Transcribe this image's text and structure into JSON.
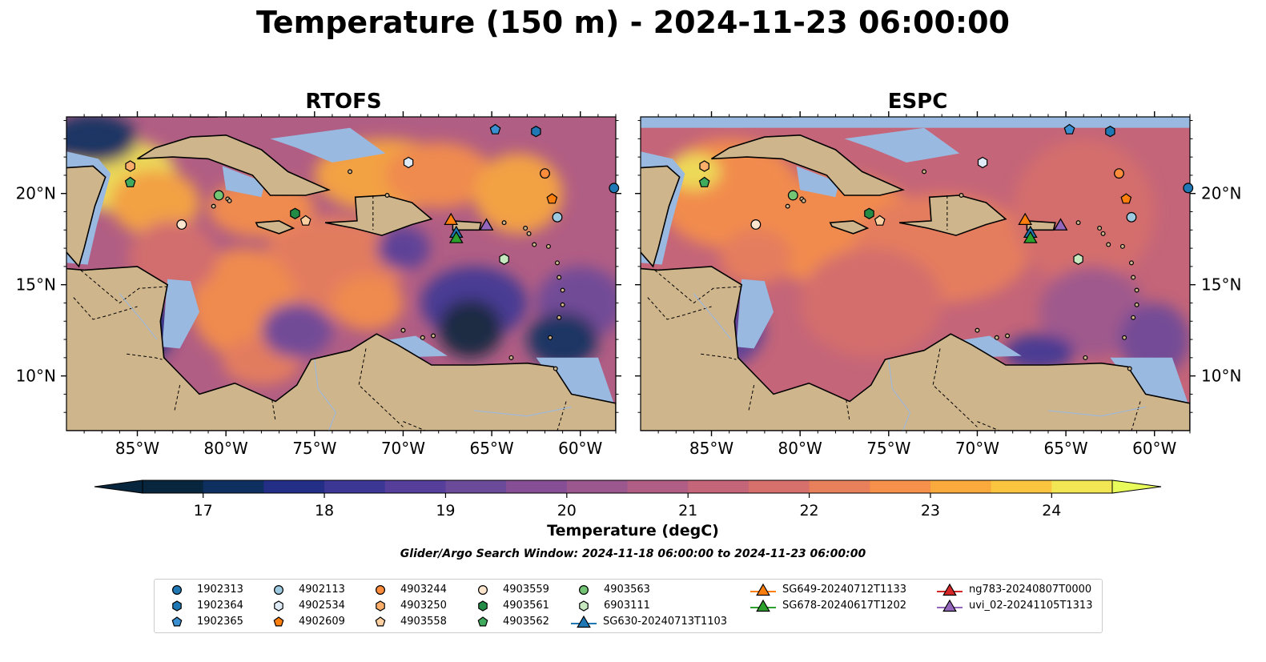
{
  "figure": {
    "title": "Temperature (150 m) - 2024-11-23 06:00:00",
    "panels": [
      {
        "title": "RTOFS"
      },
      {
        "title": "ESPC"
      }
    ],
    "lon_ticks": [
      "85°W",
      "80°W",
      "75°W",
      "70°W",
      "65°W",
      "60°W"
    ],
    "lon_values": [
      -85,
      -80,
      -75,
      -70,
      -65,
      -60
    ],
    "lat_ticks": [
      "10°N",
      "15°N",
      "20°N"
    ],
    "lat_values": [
      10,
      15,
      20
    ],
    "extent": {
      "lon_min": -89,
      "lon_max": -58,
      "lat_min": 7,
      "lat_max": 24.2
    },
    "colors": {
      "land": "#cfb58b",
      "shelf": "#99b9e0",
      "ocean_deep": "#06233a"
    },
    "colorbar": {
      "label": "Temperature (degC)",
      "min": 16.5,
      "max": 24.5,
      "step": 0.5,
      "ticks": [
        17,
        18,
        19,
        20,
        21,
        22,
        23,
        24
      ],
      "tick_labels": [
        "17",
        "18",
        "19",
        "20",
        "21",
        "22",
        "23",
        "24"
      ],
      "colors": [
        "#07253c",
        "#0e3060",
        "#232f86",
        "#3c3795",
        "#563f9a",
        "#6c4a9a",
        "#864f95",
        "#9b588f",
        "#b15e84",
        "#c46579",
        "#d6706c",
        "#e8805b",
        "#f6904a",
        "#faa93c",
        "#fbc540",
        "#f2e654"
      ]
    },
    "search_window": "Glider/Argo Search Window: 2024-11-18 06:00:00 to 2024-11-23 06:00:00",
    "legend": [
      {
        "label": "1902313",
        "marker": "circle",
        "color": "#1f77b4"
      },
      {
        "label": "1902364",
        "marker": "hexagon",
        "color": "#1f77b4"
      },
      {
        "label": "1902365",
        "marker": "pentagon",
        "color": "#3a8fd0"
      },
      {
        "label": "4902113",
        "marker": "circle",
        "color": "#9ecae1"
      },
      {
        "label": "4902534",
        "marker": "hexagon",
        "color": "#deebf7"
      },
      {
        "label": "4902609",
        "marker": "pentagon",
        "color": "#ff7f0e"
      },
      {
        "label": "4903244",
        "marker": "circle",
        "color": "#fd8d3c"
      },
      {
        "label": "4903250",
        "marker": "hexagon",
        "color": "#fdae6b"
      },
      {
        "label": "4903558",
        "marker": "pentagon",
        "color": "#fdd0a2"
      },
      {
        "label": "4903559",
        "marker": "circle",
        "color": "#fee6ce"
      },
      {
        "label": "4903561",
        "marker": "hexagon",
        "color": "#238b45"
      },
      {
        "label": "4903562",
        "marker": "pentagon",
        "color": "#41ab5d"
      },
      {
        "label": "4903563",
        "marker": "circle",
        "color": "#74c476"
      },
      {
        "label": "6903111",
        "marker": "hexagon",
        "color": "#c7e9c0"
      },
      {
        "label": "SG630-20240713T1103",
        "marker": "triangle",
        "color": "#1f77b4"
      },
      {
        "label": "SG649-20240712T1133",
        "marker": "triangle",
        "color": "#ff7f0e"
      },
      {
        "label": "SG678-20240617T1202",
        "marker": "triangle",
        "color": "#2ca02c"
      },
      {
        "label": "ng783-20240807T0000",
        "marker": "triangle",
        "color": "#d62728"
      },
      {
        "label": "uvi_02-20241105T1313",
        "marker": "triangle",
        "color": "#9467bd"
      }
    ],
    "platforms": [
      {
        "id": "1902313",
        "lon": -58.1,
        "lat": 20.3
      },
      {
        "id": "1902364",
        "lon": -62.5,
        "lat": 23.4
      },
      {
        "id": "1902365",
        "lon": -64.8,
        "lat": 23.5
      },
      {
        "id": "4902113",
        "lon": -61.3,
        "lat": 18.7
      },
      {
        "id": "4902534",
        "lon": -69.7,
        "lat": 21.7
      },
      {
        "id": "4902609",
        "lon": -61.6,
        "lat": 19.7
      },
      {
        "id": "4903244",
        "lon": -62.0,
        "lat": 21.1
      },
      {
        "id": "4903250",
        "lon": -85.4,
        "lat": 21.5
      },
      {
        "id": "4903558",
        "lon": -75.5,
        "lat": 18.5
      },
      {
        "id": "4903559",
        "lon": -82.5,
        "lat": 18.3
      },
      {
        "id": "4903561",
        "lon": -76.1,
        "lat": 18.9
      },
      {
        "id": "4903562",
        "lon": -85.4,
        "lat": 20.6
      },
      {
        "id": "4903563",
        "lon": -80.4,
        "lat": 19.9
      },
      {
        "id": "6903111",
        "lon": -64.3,
        "lat": 16.4
      },
      {
        "id": "SG630-20240713T1103",
        "lon": -67.0,
        "lat": 17.8
      },
      {
        "id": "SG649-20240712T1133",
        "lon": -67.3,
        "lat": 18.5
      },
      {
        "id": "SG678-20240617T1202",
        "lon": -67.0,
        "lat": 17.5
      },
      {
        "id": "ng783-20240807T0000",
        "lon": -65.3,
        "lat": 18.2
      },
      {
        "id": "uvi_02-20241105T1313",
        "lon": -65.3,
        "lat": 18.2
      }
    ]
  }
}
